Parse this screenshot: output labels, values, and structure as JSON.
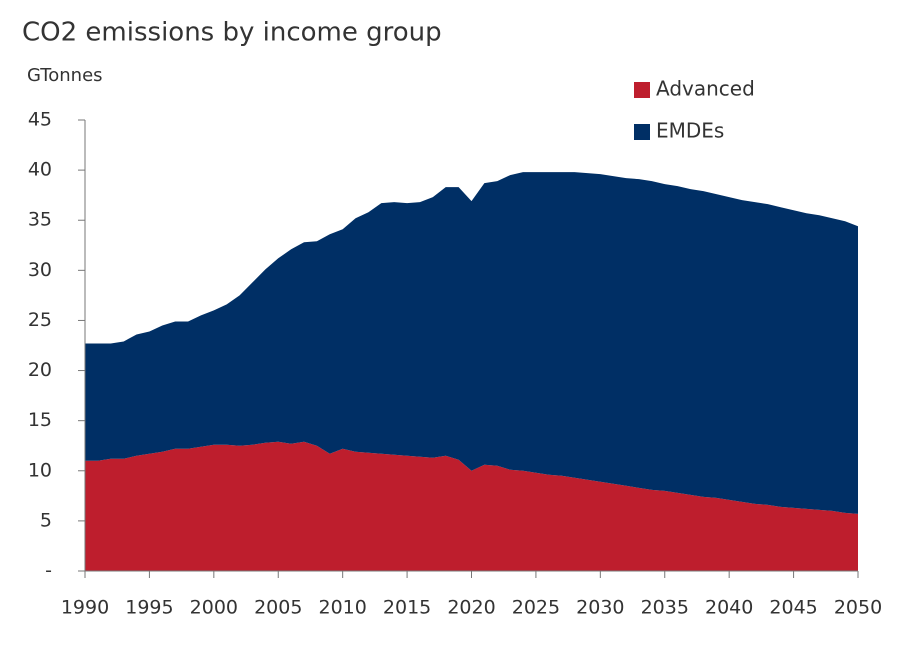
{
  "chart_data": {
    "type": "stacked-area",
    "title": "CO2 emissions by income group",
    "y_label": "GTonnes",
    "x": [
      1990,
      1991,
      1992,
      1993,
      1994,
      1995,
      1996,
      1997,
      1998,
      1999,
      2000,
      2001,
      2002,
      2003,
      2004,
      2005,
      2006,
      2007,
      2008,
      2009,
      2010,
      2011,
      2012,
      2013,
      2014,
      2015,
      2016,
      2017,
      2018,
      2019,
      2020,
      2021,
      2022,
      2023,
      2024,
      2025,
      2026,
      2027,
      2028,
      2029,
      2030,
      2031,
      2032,
      2033,
      2034,
      2035,
      2036,
      2037,
      2038,
      2039,
      2040,
      2041,
      2042,
      2043,
      2044,
      2045,
      2046,
      2047,
      2048,
      2049,
      2050
    ],
    "series": [
      {
        "name": "Advanced",
        "color": "#be1e2d",
        "values": [
          11.0,
          11.0,
          11.2,
          11.2,
          11.5,
          11.7,
          11.9,
          12.2,
          12.2,
          12.4,
          12.6,
          12.6,
          12.5,
          12.6,
          12.8,
          12.9,
          12.7,
          12.9,
          12.5,
          11.7,
          12.2,
          11.9,
          11.8,
          11.7,
          11.6,
          11.5,
          11.4,
          11.3,
          11.5,
          11.1,
          10.0,
          10.6,
          10.5,
          10.1,
          10.0,
          9.8,
          9.6,
          9.5,
          9.3,
          9.1,
          8.9,
          8.7,
          8.5,
          8.3,
          8.1,
          8.0,
          7.8,
          7.6,
          7.4,
          7.3,
          7.1,
          6.9,
          6.7,
          6.6,
          6.4,
          6.3,
          6.2,
          6.1,
          6.0,
          5.8,
          5.7
        ]
      },
      {
        "name": "EMDEs",
        "color": "#002f65",
        "values": [
          11.7,
          11.7,
          11.5,
          11.7,
          12.1,
          12.2,
          12.6,
          12.7,
          12.7,
          13.1,
          13.4,
          14.0,
          15.0,
          16.2,
          17.3,
          18.3,
          19.4,
          19.9,
          20.4,
          21.9,
          21.9,
          23.3,
          24.0,
          25.0,
          25.2,
          25.2,
          25.4,
          26.0,
          26.8,
          27.2,
          26.9,
          28.1,
          28.4,
          29.4,
          29.8,
          30.0,
          30.2,
          30.3,
          30.5,
          30.6,
          30.7,
          30.7,
          30.7,
          30.8,
          30.8,
          30.6,
          30.6,
          30.5,
          30.5,
          30.3,
          30.2,
          30.1,
          30.1,
          30.0,
          29.9,
          29.7,
          29.5,
          29.4,
          29.2,
          29.1,
          28.7
        ]
      }
    ],
    "xlim": [
      1990,
      2050
    ],
    "xticks": [
      1990,
      1995,
      2000,
      2005,
      2010,
      2015,
      2020,
      2025,
      2030,
      2035,
      2040,
      2045,
      2050
    ],
    "ylim": [
      0,
      45
    ],
    "yticks": [
      {
        "value": 0,
        "label": "-"
      },
      5,
      10,
      15,
      20,
      25,
      30,
      35,
      40,
      45
    ],
    "grid": false,
    "legend": "top-right"
  }
}
